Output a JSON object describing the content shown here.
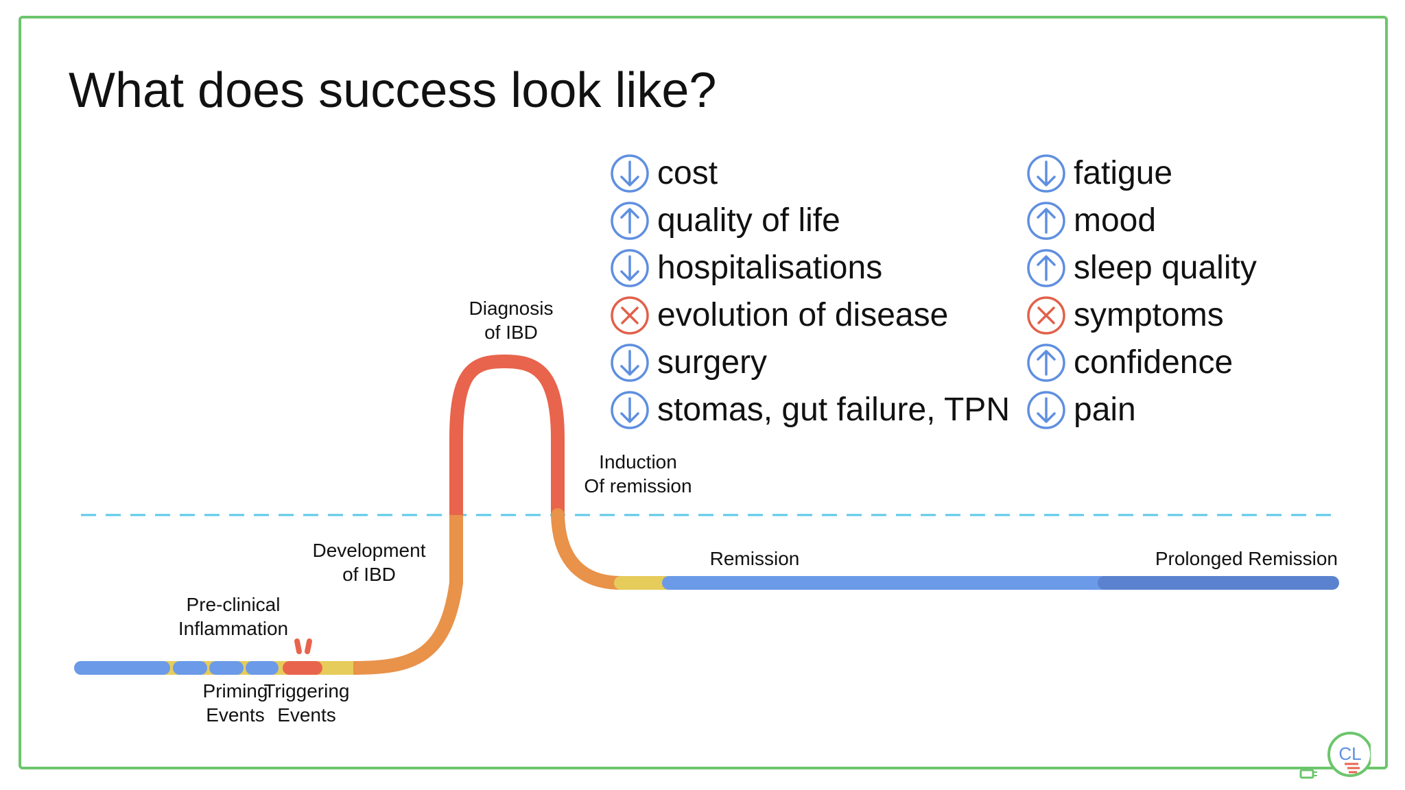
{
  "slide": {
    "title": "What does success look like?"
  },
  "outcomes_left": [
    {
      "icon": "arrow-down-icon",
      "label": "cost"
    },
    {
      "icon": "arrow-up-icon",
      "label": "quality of life"
    },
    {
      "icon": "arrow-down-icon",
      "label": "hospitalisations"
    },
    {
      "icon": "cross-icon",
      "label": "evolution of disease"
    },
    {
      "icon": "arrow-down-icon",
      "label": "surgery"
    },
    {
      "icon": "arrow-down-icon",
      "label": "stomas, gut failure, TPN"
    }
  ],
  "outcomes_right": [
    {
      "icon": "arrow-down-icon",
      "label": "fatigue"
    },
    {
      "icon": "arrow-up-icon",
      "label": "mood"
    },
    {
      "icon": "arrow-up-icon",
      "label": "sleep quality"
    },
    {
      "icon": "cross-icon",
      "label": "symptoms"
    },
    {
      "icon": "arrow-up-icon",
      "label": "confidence"
    },
    {
      "icon": "arrow-down-icon",
      "label": "pain"
    }
  ],
  "stages": {
    "priming_events": [
      "Priming",
      "Events"
    ],
    "triggering_events": [
      "Triggering",
      "Events"
    ],
    "preclinical_inflammation": [
      "Pre-clinical",
      "Inflammation"
    ],
    "development_of_ibd": [
      "Development",
      "of IBD"
    ],
    "diagnosis_of_ibd": [
      "Diagnosis",
      "of IBD"
    ],
    "induction_of_remission": [
      "Induction",
      "Of remission"
    ],
    "remission": "Remission",
    "prolonged_remission": "Prolonged Remission"
  },
  "logo": {
    "text": "CL"
  },
  "colors": {
    "frame_green": "#6cc56c",
    "blue": "#6b9ae8",
    "dark_blue": "#5a82cf",
    "yellow": "#e6cc5a",
    "orange": "#e8924a",
    "red": "#e8644c",
    "dashed_line": "#5bc8e8",
    "icon_blue": "#5f8fe0",
    "icon_red": "#e2604a"
  }
}
